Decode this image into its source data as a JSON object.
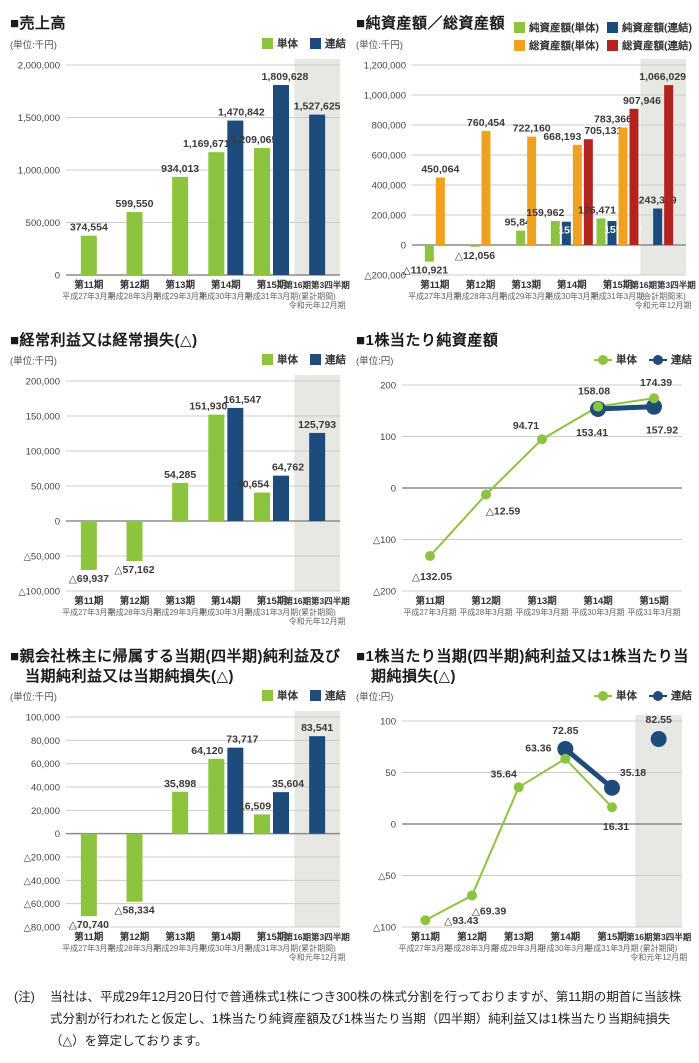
{
  "colors": {
    "tandoku_green": "#8cc43f",
    "renketsu_blue": "#1d4b7c",
    "soshisan_tandoku_orange": "#f0a11f",
    "soshisan_renketsu_red": "#b3241f",
    "highlight_band_gray": "#e7e7e4",
    "grid_gray": "#cccccc",
    "zero_line_gray": "#8c8c8c",
    "value_label_gray": "#3a3a3a"
  },
  "note": {
    "prefix": "(注)",
    "text": "当社は、平成29年12月20日付で普通株式1株につき300株の株式分割を行っておりますが、第11期の期首に当該株式分割が行われたと仮定し、1株当たり純資産額及び1株当たり当期（四半期）純利益又は1株当たり当期純損失（△）を算定しております。"
  },
  "chart_data": [
    {
      "id": "sales",
      "title": "■売上高",
      "unit": "(単位:千円)",
      "type": "bar",
      "ylim": [
        0,
        2000000
      ],
      "ystep": 500000,
      "legend": [
        {
          "label": "単体",
          "color": "#8cc43f",
          "marker": "square"
        },
        {
          "label": "連結",
          "color": "#1d4b7c",
          "marker": "square"
        }
      ],
      "categories": [
        {
          "l1": "第11期",
          "l2": "平成27年3月期"
        },
        {
          "l1": "第12期",
          "l2": "平成28年3月期"
        },
        {
          "l1": "第13期",
          "l2": "平成29年3月期"
        },
        {
          "l1": "第14期",
          "l2": "平成30年3月期"
        },
        {
          "l1": "第15期",
          "l2": "平成31年3月期"
        },
        {
          "l1": "第16期第3四半期",
          "l2": "(累計期間)",
          "l3": "令和元年12月期",
          "band": true
        }
      ],
      "series": [
        {
          "name": "単体",
          "color": "#8cc43f",
          "values": [
            374554,
            599550,
            934013,
            1169671,
            1209065,
            null
          ],
          "label_overrides": {
            "3": {
              "dx": -10
            },
            "4": {
              "dx": -8
            }
          }
        },
        {
          "name": "連結",
          "color": "#1d4b7c",
          "values": [
            null,
            null,
            null,
            1470842,
            1809628,
            1527625
          ],
          "label_overrides": {
            "3": {
              "dx": 6
            },
            "4": {
              "dx": 4
            }
          }
        }
      ]
    },
    {
      "id": "net-assets-total-assets",
      "title": "■純資産額／総資産額",
      "unit": "(単位:千円)",
      "type": "bar",
      "ylim": [
        -200000,
        1200000
      ],
      "ystep": 200000,
      "legend": [
        {
          "label": "純資産額(単体)",
          "color": "#8cc43f",
          "marker": "square"
        },
        {
          "label": "純資産額(連結)",
          "color": "#1d4b7c",
          "marker": "square"
        },
        {
          "label": "総資産額(単体)",
          "color": "#f0a11f",
          "marker": "square"
        },
        {
          "label": "総資産額(連結)",
          "color": "#b3241f",
          "marker": "square"
        }
      ],
      "categories": [
        {
          "l1": "第11期",
          "l2": "平成27年3月期"
        },
        {
          "l1": "第12期",
          "l2": "平成28年3月期"
        },
        {
          "l1": "第13期",
          "l2": "平成29年3月期"
        },
        {
          "l1": "第14期",
          "l2": "平成30年3月期"
        },
        {
          "l1": "第15期",
          "l2": "平成31年3月期"
        },
        {
          "l1": "第16期第3四半期",
          "l2": "(会計期間末)",
          "l3": "令和元年12月期",
          "band": true
        }
      ],
      "series": [
        {
          "name": "純資産額(単体)",
          "color": "#8cc43f",
          "values": [
            -110921,
            -12056,
            95842,
            159962,
            176471,
            null
          ],
          "label_overrides": {
            "0": {
              "dx": -4
            },
            "3": {
              "dx": -10
            },
            "4": {
              "dx": -4
            }
          }
        },
        {
          "name": "純資産額(連結)",
          "color": "#1d4b7c",
          "values": [
            null,
            null,
            null,
            155235,
            159807,
            243349
          ],
          "label_overrides": {
            "3": {
              "inside": true,
              "fill": "#ffffff",
              "dx": 11
            },
            "4": {
              "inside": true,
              "fill": "#ffffff",
              "dx": 11
            }
          }
        },
        {
          "name": "総資産額(単体)",
          "color": "#f0a11f",
          "values": [
            450064,
            760454,
            722160,
            668193,
            783366,
            null
          ],
          "label_overrides": {
            "3": {
              "dx": -15
            },
            "4": {
              "dx": -10
            }
          }
        },
        {
          "name": "総資産額(連結)",
          "color": "#b3241f",
          "values": [
            null,
            null,
            null,
            705131,
            907946,
            1066029
          ],
          "label_overrides": {
            "3": {
              "dx": 15
            },
            "4": {
              "dx": 8
            },
            "5": {
              "dx": -6
            }
          }
        }
      ]
    },
    {
      "id": "ordinary-profit-loss",
      "title": "■経常利益又は経常損失(△)",
      "unit": "(単位:千円)",
      "type": "bar",
      "ylim": [
        -100000,
        200000
      ],
      "ystep": 50000,
      "legend": [
        {
          "label": "単体",
          "color": "#8cc43f",
          "marker": "square"
        },
        {
          "label": "連結",
          "color": "#1d4b7c",
          "marker": "square"
        }
      ],
      "categories": [
        {
          "l1": "第11期",
          "l2": "平成27年3月期"
        },
        {
          "l1": "第12期",
          "l2": "平成28年3月期"
        },
        {
          "l1": "第13期",
          "l2": "平成29年3月期"
        },
        {
          "l1": "第14期",
          "l2": "平成30年3月期"
        },
        {
          "l1": "第15期",
          "l2": "平成31年3月期"
        },
        {
          "l1": "第16期第3四半期",
          "l2": "(累計期間)",
          "l3": "令和元年12月期",
          "band": true
        }
      ],
      "series": [
        {
          "name": "単体",
          "color": "#8cc43f",
          "values": [
            -69937,
            -57162,
            54285,
            151930,
            40654,
            null
          ],
          "label_overrides": {
            "3": {
              "dx": -8
            },
            "4": {
              "dx": -9
            }
          }
        },
        {
          "name": "連結",
          "color": "#1d4b7c",
          "values": [
            null,
            null,
            null,
            161547,
            64762,
            125793
          ],
          "label_overrides": {
            "3": {
              "dx": 7
            },
            "4": {
              "dx": 7
            }
          }
        }
      ]
    },
    {
      "id": "net-assets-per-share",
      "title": "■1株当たり純資産額",
      "unit": "(単位:円)",
      "type": "line",
      "ylim": [
        -200,
        200
      ],
      "ystep": 100,
      "legend": [
        {
          "label": "単体",
          "color": "#8cc43f",
          "marker": "circle"
        },
        {
          "label": "連結",
          "color": "#1d4b7c",
          "marker": "circle"
        }
      ],
      "categories": [
        {
          "l1": "第11期",
          "l2": "平成27年3月期"
        },
        {
          "l1": "第12期",
          "l2": "平成28年3月期"
        },
        {
          "l1": "第13期",
          "l2": "平成29年3月期"
        },
        {
          "l1": "第14期",
          "l2": "平成30年3月期"
        },
        {
          "l1": "第15期",
          "l2": "平成31年3月期"
        }
      ],
      "series": [
        {
          "name": "単体",
          "color": "#8cc43f",
          "lw": 2,
          "r": 5,
          "values": [
            -132.05,
            -12.59,
            94.71,
            158.08,
            174.39
          ],
          "label_overrides": {
            "0": {
              "dx": 2,
              "dy": 24
            },
            "1": {
              "dx": 17,
              "dy": 20
            },
            "2": {
              "dx": -16,
              "dy": -10
            },
            "3": {
              "dx": -4,
              "dy": -12
            },
            "4": {
              "dx": 2,
              "dy": -12
            }
          }
        },
        {
          "name": "連結",
          "color": "#1d4b7c",
          "lw": 5,
          "r": 8,
          "values": [
            null,
            null,
            null,
            153.41,
            157.92
          ],
          "label_overrides": {
            "3": {
              "dx": -6,
              "dy": 27
            },
            "4": {
              "dx": 8,
              "dy": 27
            }
          }
        }
      ]
    },
    {
      "id": "net-income-attributable-to-parent",
      "title": "■親会社株主に帰属する当期(四半期)純利益及び当期純利益又は当期純損失(△)",
      "unit": "(単位:千円)",
      "type": "bar",
      "ylim": [
        -80000,
        100000
      ],
      "ystep": 20000,
      "legend": [
        {
          "label": "単体",
          "color": "#8cc43f",
          "marker": "square"
        },
        {
          "label": "連結",
          "color": "#1d4b7c",
          "marker": "square"
        }
      ],
      "categories": [
        {
          "l1": "第11期",
          "l2": "平成27年3月期"
        },
        {
          "l1": "第12期",
          "l2": "平成28年3月期"
        },
        {
          "l1": "第13期",
          "l2": "平成29年3月期"
        },
        {
          "l1": "第14期",
          "l2": "平成30年3月期"
        },
        {
          "l1": "第15期",
          "l2": "平成31年3月期"
        },
        {
          "l1": "第16期第3四半期",
          "l2": "(累計期間)",
          "l3": "令和元年12月期",
          "band": true
        }
      ],
      "series": [
        {
          "name": "単体",
          "color": "#8cc43f",
          "values": [
            -70740,
            -58334,
            35898,
            64120,
            16509,
            null
          ],
          "label_overrides": {
            "3": {
              "dx": -9
            },
            "4": {
              "dx": -7
            }
          }
        },
        {
          "name": "連結",
          "color": "#1d4b7c",
          "values": [
            null,
            null,
            null,
            73717,
            35604,
            83541
          ],
          "label_overrides": {
            "3": {
              "dx": 7
            },
            "4": {
              "dx": 7
            }
          }
        }
      ]
    },
    {
      "id": "net-income-per-share",
      "title": "■1株当たり当期(四半期)純利益又は1株当たり当期純損失(△)",
      "unit": "(単位:円)",
      "type": "line",
      "ylim": [
        -100,
        100
      ],
      "ystep": 50,
      "legend": [
        {
          "label": "単体",
          "color": "#8cc43f",
          "marker": "circle"
        },
        {
          "label": "連結",
          "color": "#1d4b7c",
          "marker": "circle"
        }
      ],
      "categories": [
        {
          "l1": "第11期",
          "l2": "平成27年3月期"
        },
        {
          "l1": "第12期",
          "l2": "平成28年3月期"
        },
        {
          "l1": "第13期",
          "l2": "平成29年3月期"
        },
        {
          "l1": "第14期",
          "l2": "平成30年3月期"
        },
        {
          "l1": "第15期",
          "l2": "平成31年3月期"
        },
        {
          "l1": "第16期第3四半期",
          "l2": "(累計期間)",
          "l3": "令和元年12月期",
          "band": true
        }
      ],
      "series": [
        {
          "name": "単体",
          "color": "#8cc43f",
          "lw": 2,
          "r": 5,
          "values": [
            -93.43,
            -69.39,
            35.64,
            63.36,
            16.31,
            null
          ],
          "label_overrides": {
            "0": {
              "dx": 36,
              "dy": 4
            },
            "1": {
              "dx": 17,
              "dy": 19
            },
            "2": {
              "dx": -15,
              "dy": -10
            },
            "3": {
              "dx": -27,
              "dy": -7
            },
            "4": {
              "dx": 4,
              "dy": 23
            }
          }
        },
        {
          "name": "連結",
          "color": "#1d4b7c",
          "lw": 5,
          "r": 8,
          "gaps": [
            4
          ],
          "values": [
            null,
            null,
            null,
            72.85,
            35.18,
            82.55
          ],
          "label_overrides": {
            "3": {
              "dy": -15
            },
            "4": {
              "dx": 21,
              "dy": -12
            },
            "5": {
              "dy": -16
            }
          }
        }
      ]
    }
  ]
}
